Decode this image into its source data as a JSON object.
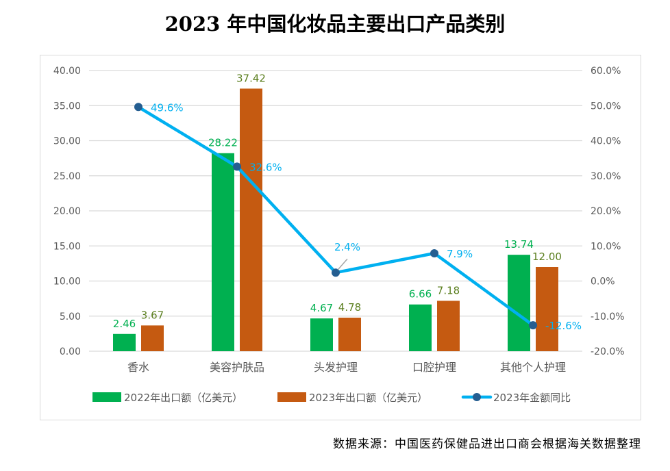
{
  "chart_data": {
    "type": "bar",
    "title": "2023 年中国化妆品主要出口产品类别",
    "categories": [
      "香水",
      "美容护肤品",
      "头发护理",
      "口腔护理",
      "其他个人护理"
    ],
    "series": [
      {
        "name": "2022年出口额（亿美元）",
        "type": "bar",
        "axis": "left",
        "color": "#00b050",
        "label_color": "#00b050",
        "values": [
          2.46,
          28.22,
          4.67,
          6.66,
          13.74
        ],
        "labels": [
          "2.46",
          "28.22",
          "4.67",
          "6.66",
          "13.74"
        ]
      },
      {
        "name": "2023年出口额（亿美元）",
        "type": "bar",
        "axis": "left",
        "color": "#c55a11",
        "label_color": "#5b7f1f",
        "values": [
          3.67,
          37.42,
          4.78,
          7.18,
          12.0
        ],
        "labels": [
          "3.67",
          "37.42",
          "4.78",
          "7.18",
          "12.00"
        ]
      },
      {
        "name": "2023年金额同比",
        "type": "line",
        "axis": "right",
        "color": "#00b0f0",
        "marker_color": "#255e91",
        "label_color": "#00b0f0",
        "values": [
          49.6,
          32.6,
          2.4,
          7.9,
          -12.6
        ],
        "labels": [
          "49.6%",
          "32.6%",
          "2.4%",
          "7.9%",
          "-12.6%"
        ]
      }
    ],
    "y_left": {
      "range": [
        0,
        40
      ],
      "ticks": [
        "0.00",
        "5.00",
        "10.00",
        "15.00",
        "20.00",
        "25.00",
        "30.00",
        "35.00",
        "40.00"
      ]
    },
    "y_right": {
      "range": [
        -20,
        60
      ],
      "ticks": [
        "-20.0%",
        "-10.0%",
        "0.0%",
        "10.0%",
        "20.0%",
        "30.0%",
        "40.0%",
        "50.0%",
        "60.0%"
      ]
    },
    "grid": true,
    "legend": "bottom"
  },
  "source": "数据来源：中国医药保健品进出口商会根据海关数据整理"
}
